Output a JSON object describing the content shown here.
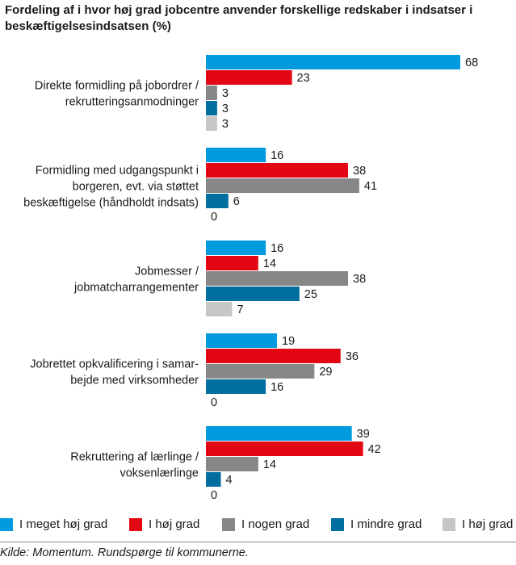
{
  "chart_data": {
    "type": "bar",
    "orientation": "horizontal",
    "title": "Fordeling af i hvor høj grad jobcentre anvender forskellige redskaber i indsatser i beskæftigelsesindsatsen (%)",
    "categories": [
      [
        "Direkte formidling på jobordrer /",
        "rekrutteringsanmodninger"
      ],
      [
        "Formidling med udgangspunkt i",
        "borgeren, evt. via støttet",
        "beskæftigelse (håndholdt indsats)"
      ],
      [
        "Jobmesser /",
        "jobmatcharrangementer"
      ],
      [
        "Jobrettet opkvalificering i samar-",
        "bejde med virksomheder"
      ],
      [
        "Rekruttering af lærlinge /",
        "voksenlærlinge"
      ]
    ],
    "series": [
      {
        "name": "I meget høj grad",
        "color": "#009ADE",
        "values": [
          68,
          16,
          16,
          19,
          39
        ]
      },
      {
        "name": "I høj grad",
        "color": "#E30613",
        "values": [
          23,
          38,
          14,
          36,
          42
        ]
      },
      {
        "name": "I nogen grad",
        "color": "#878787",
        "values": [
          3,
          41,
          38,
          29,
          14
        ]
      },
      {
        "name": "I mindre grad",
        "color": "#006E9F",
        "values": [
          3,
          6,
          25,
          16,
          4
        ]
      },
      {
        "name": "I høj grad",
        "color": "#C6C6C6",
        "values": [
          3,
          0,
          7,
          0,
          0
        ]
      }
    ],
    "xlim": [
      0,
      68
    ],
    "grid": false,
    "legend_position": "bottom",
    "source": "Kilde: Momentum. Rundspørge til kommunerne."
  }
}
